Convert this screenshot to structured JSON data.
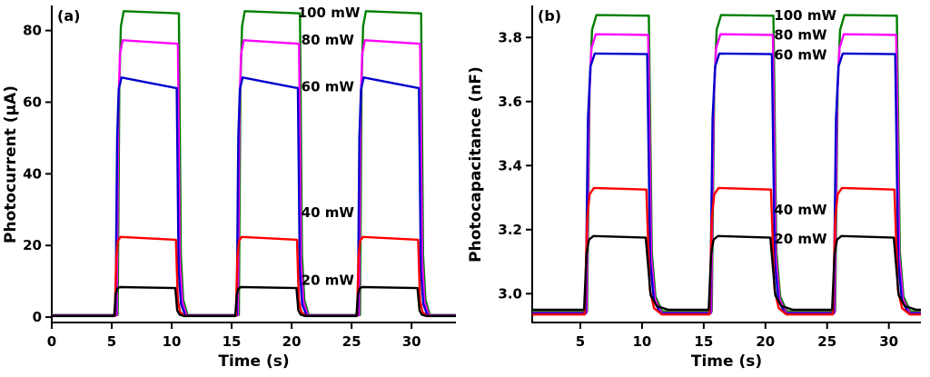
{
  "figure": {
    "background": "#ffffff",
    "axis_color": "#000000"
  },
  "chart_data": [
    {
      "type": "line",
      "panel_label": "(a)",
      "xlabel": "Time (s)",
      "ylabel": "Photocurrent (μA)",
      "xlim": [
        0,
        33.7
      ],
      "ylim": [
        -1.5,
        87
      ],
      "xticks": [
        0,
        5,
        10,
        15,
        20,
        25,
        30
      ],
      "xtick_labels": [
        "0",
        "5",
        "10",
        "15",
        "20",
        "25",
        "30"
      ],
      "yticks": [
        0,
        20,
        40,
        60,
        80
      ],
      "ytick_labels": [
        "0",
        "20",
        "40",
        "60",
        "80"
      ],
      "grid": false,
      "legend": "inline-labels",
      "pulse_starts": [
        5.2,
        15.3,
        25.4
      ],
      "pulse_duration": 5.1,
      "series": [
        {
          "name": "100 mW",
          "color": "#008000",
          "baseline": 0.6,
          "plateau_start": 85.4,
          "plateau_end": 84.8,
          "rise": 0.33,
          "fall": 0.4,
          "delay": 0.3
        },
        {
          "name": "80 mW",
          "color": "#ff00ff",
          "baseline": 0.5,
          "plateau_start": 77.3,
          "plateau_end": 76.3,
          "rise": 0.33,
          "fall": 0.4,
          "delay": 0.22
        },
        {
          "name": "60 mW",
          "color": "#0000cd",
          "baseline": 0.45,
          "plateau_start": 66.9,
          "plateau_end": 63.9,
          "rise": 0.33,
          "fall": 0.4,
          "delay": 0.12
        },
        {
          "name": "40 mW",
          "color": "#ff0000",
          "baseline": 0.35,
          "plateau_start": 22.4,
          "plateau_end": 21.6,
          "rise": 0.33,
          "fall": 0.4,
          "delay": 0.05
        },
        {
          "name": "20 mW",
          "color": "#000000",
          "baseline": 0.3,
          "plateau_start": 8.4,
          "plateau_end": 8.1,
          "rise": 0.33,
          "fall": 0.4,
          "delay": 0
        }
      ],
      "labels": [
        {
          "text": "100 mW",
          "x": 20.5,
          "y": 84.8
        },
        {
          "text": "80 mW",
          "x": 20.8,
          "y": 77.2
        },
        {
          "text": "60 mW",
          "x": 20.8,
          "y": 64.2
        },
        {
          "text": "40 mW",
          "x": 20.8,
          "y": 29.0
        },
        {
          "text": "20 mW",
          "x": 20.8,
          "y": 10.2
        }
      ]
    },
    {
      "type": "line",
      "panel_label": "(b)",
      "xlabel": "Time (s)",
      "ylabel": "Photocapacitance (nF)",
      "xlim": [
        1.1,
        32.6
      ],
      "ylim": [
        2.91,
        3.9
      ],
      "xticks": [
        5,
        10,
        15,
        20,
        25,
        30
      ],
      "xtick_labels": [
        "5",
        "10",
        "15",
        "20",
        "25",
        "30"
      ],
      "yticks": [
        3.0,
        3.2,
        3.4,
        3.6,
        3.8
      ],
      "ytick_labels": [
        "3.0",
        "3.2",
        "3.4",
        "3.6",
        "3.8"
      ],
      "grid": false,
      "legend": "inline-labels",
      "pulse_starts": [
        5.3,
        15.4,
        25.4
      ],
      "pulse_duration": 5.0,
      "series": [
        {
          "name": "100 mW",
          "color": "#008000",
          "baseline": 2.945,
          "plateau_start": 3.87,
          "plateau_end": 3.868,
          "rise": 0.5,
          "fall": 0.6,
          "delay": 0.25
        },
        {
          "name": "80 mW",
          "color": "#ff00ff",
          "baseline": 2.94,
          "plateau_start": 3.81,
          "plateau_end": 3.808,
          "rise": 0.5,
          "fall": 0.6,
          "delay": 0.2
        },
        {
          "name": "60 mW",
          "color": "#0000cd",
          "baseline": 2.938,
          "plateau_start": 3.75,
          "plateau_end": 3.748,
          "rise": 0.5,
          "fall": 0.6,
          "delay": 0.12
        },
        {
          "name": "40 mW",
          "color": "#ff0000",
          "baseline": 2.935,
          "plateau_start": 3.33,
          "plateau_end": 3.325,
          "rise": 0.5,
          "fall": 0.7,
          "delay": 0.05
        },
        {
          "name": "20 mW",
          "color": "#000000",
          "baseline": 2.95,
          "plateau_start": 3.18,
          "plateau_end": 3.175,
          "rise": 0.5,
          "fall": 1.0,
          "delay": 0
        }
      ],
      "labels": [
        {
          "text": "100 mW",
          "x": 20.7,
          "y": 3.868
        },
        {
          "text": "80 mW",
          "x": 20.7,
          "y": 3.806
        },
        {
          "text": "60 mW",
          "x": 20.7,
          "y": 3.744
        },
        {
          "text": "40 mW",
          "x": 20.7,
          "y": 3.26
        },
        {
          "text": "20 mW",
          "x": 20.7,
          "y": 3.17
        }
      ]
    }
  ]
}
